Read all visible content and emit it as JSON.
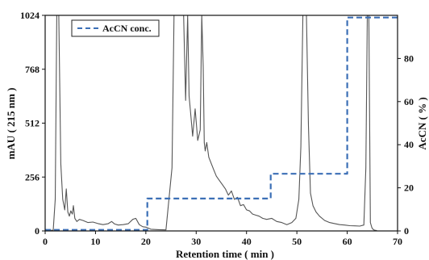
{
  "chart_data": {
    "type": "line",
    "xlabel": "Retention time ( min )",
    "ylabel_left": "mAU ( 215 nm )",
    "ylabel_right": "AcCN ( % )",
    "xlim": [
      0,
      70
    ],
    "ylim_left": [
      0,
      1024
    ],
    "ylim_right": [
      0,
      100
    ],
    "xticks": [
      0,
      10,
      20,
      30,
      40,
      50,
      60,
      70
    ],
    "yticks_left": [
      0,
      256,
      512,
      768,
      1024
    ],
    "yticks_right": [
      0,
      20,
      40,
      60,
      80
    ],
    "grid": false,
    "legend_position": "top-left",
    "series": [
      {
        "axis": "left",
        "color": "#555555",
        "style": "solid",
        "x": [
          0,
          1.6,
          2.0,
          2.3,
          2.7,
          3.1,
          3.5,
          3.9,
          4.2,
          4.5,
          4.8,
          5.1,
          5.4,
          5.6,
          5.9,
          6.3,
          6.8,
          7.5,
          8.5,
          9.5,
          10.5,
          11.5,
          12.5,
          13.2,
          13.8,
          14.5,
          15.5,
          16.5,
          17.4,
          18.0,
          18.7,
          19.4,
          20.0,
          21.0,
          22.5,
          24.0,
          25.2,
          25.6,
          26.1,
          26.8,
          27.5,
          27.9,
          28.3,
          28.6,
          28.9,
          29.3,
          29.8,
          30.3,
          30.8,
          31.1,
          31.4,
          31.6,
          31.8,
          32.1,
          32.5,
          33.0,
          33.5,
          34.0,
          34.6,
          35.2,
          35.8,
          36.4,
          37.0,
          37.6,
          38.2,
          38.8,
          39.4,
          40.0,
          40.6,
          41.2,
          41.8,
          42.5,
          43.2,
          44.0,
          45.0,
          46.0,
          47.0,
          48.0,
          49.0,
          49.8,
          50.4,
          50.8,
          51.2,
          51.5,
          51.9,
          52.3,
          52.7,
          53.2,
          53.8,
          54.5,
          55.5,
          56.5,
          57.5,
          58.5,
          59.5,
          60.5,
          61.5,
          62.5,
          63.3,
          63.7,
          64.0,
          64.3,
          64.6,
          64.9,
          65.2,
          65.5,
          65.9
        ],
        "y": [
          3,
          3,
          150,
          1024,
          1024,
          320,
          150,
          100,
          200,
          90,
          70,
          95,
          80,
          120,
          60,
          45,
          55,
          50,
          40,
          42,
          35,
          30,
          34,
          45,
          33,
          28,
          30,
          34,
          55,
          60,
          30,
          20,
          18,
          8,
          6,
          5,
          300,
          1024,
          1024,
          1024,
          1024,
          620,
          1024,
          640,
          560,
          450,
          580,
          430,
          480,
          1024,
          780,
          420,
          380,
          420,
          350,
          320,
          290,
          260,
          240,
          220,
          200,
          170,
          190,
          150,
          160,
          120,
          125,
          100,
          95,
          80,
          75,
          70,
          60,
          55,
          60,
          45,
          40,
          30,
          40,
          60,
          150,
          400,
          1024,
          1024,
          1024,
          500,
          180,
          120,
          90,
          70,
          50,
          40,
          35,
          30,
          28,
          25,
          24,
          23,
          28,
          300,
          1024,
          1024,
          40,
          15,
          6,
          3,
          2
        ]
      },
      {
        "name": "AcCN conc.",
        "axis": "right",
        "color": "#3b6fb6",
        "style": "dashed",
        "x": [
          0,
          20.3,
          20.3,
          44.8,
          44.8,
          60.0,
          60.0,
          70
        ],
        "y": [
          0.5,
          0.5,
          15,
          15,
          26.5,
          26.5,
          99,
          99
        ]
      }
    ]
  }
}
